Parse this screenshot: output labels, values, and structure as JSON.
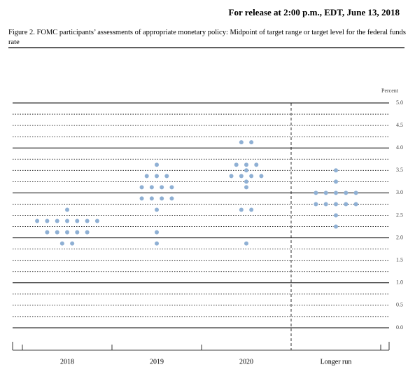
{
  "header": "For release at 2:00 p.m., EDT, June 13, 2018",
  "chart_data": {
    "type": "dot",
    "title": "Figure 2. FOMC participants’ assessments of appropriate monetary policy: Midpoint of target range or target level for the federal funds rate",
    "y_label": "Percent",
    "categories": [
      "2018",
      "2019",
      "2020",
      "Longer run"
    ],
    "values": [
      [
        2.625,
        2.375,
        2.375,
        2.375,
        2.375,
        2.375,
        2.375,
        2.375,
        2.125,
        2.125,
        2.125,
        2.125,
        2.125,
        1.875,
        1.875
      ],
      [
        3.625,
        3.375,
        3.375,
        3.375,
        3.125,
        3.125,
        3.125,
        3.125,
        2.875,
        2.875,
        2.875,
        2.875,
        2.625,
        2.125,
        1.875
      ],
      [
        4.125,
        4.125,
        3.625,
        3.625,
        3.625,
        3.5,
        3.375,
        3.375,
        3.375,
        3.375,
        3.25,
        3.125,
        2.625,
        2.625,
        1.875
      ],
      [
        3.5,
        3.25,
        3.0,
        3.0,
        3.0,
        3.0,
        3.0,
        2.75,
        2.75,
        2.75,
        2.75,
        2.75,
        2.5,
        2.25
      ]
    ],
    "color": "#8fb0d4",
    "ylim": [
      0,
      5
    ],
    "yticks": [
      {
        "value": 0,
        "label": "0.0"
      },
      0.5,
      {
        "value": 1,
        "label": "1.0"
      },
      1.5,
      {
        "value": 2,
        "label": "2.0"
      },
      2.5,
      {
        "value": 3,
        "label": "3.0"
      },
      3.5,
      {
        "value": 4,
        "label": "4.0"
      },
      4.5,
      {
        "value": 5,
        "label": "5.0"
      }
    ],
    "grid": true
  }
}
